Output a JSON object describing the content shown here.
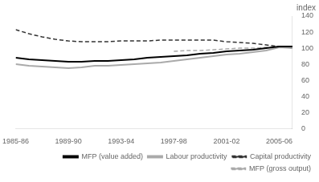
{
  "chart_data": {
    "type": "line",
    "y_label": "index",
    "x": [
      1985,
      1986,
      1987,
      1988,
      1989,
      1990,
      1991,
      1992,
      1993,
      1994,
      1995,
      1996,
      1997,
      1998,
      1999,
      2000,
      2001,
      2002,
      2003,
      2004,
      2005,
      2006
    ],
    "series": [
      {
        "name": "MFP (value added)",
        "color": "#000000",
        "line_style": "solid",
        "values": [
          88,
          86,
          85,
          84,
          83,
          83,
          84,
          84,
          85,
          86,
          88,
          89,
          90,
          91,
          93,
          94,
          96,
          97,
          98,
          100,
          102,
          102
        ]
      },
      {
        "name": "Labour productivity",
        "color": "#aaaaaa",
        "line_style": "solid",
        "values": [
          80,
          78,
          77,
          76,
          75,
          76,
          78,
          78,
          79,
          80,
          81,
          82,
          84,
          86,
          88,
          90,
          92,
          93,
          95,
          97,
          101,
          100
        ]
      },
      {
        "name": "Capital productivity",
        "color": "#333333",
        "line_style": "dashed",
        "values": [
          123,
          118,
          114,
          111,
          109,
          108,
          108,
          108,
          109,
          109,
          109,
          110,
          110,
          110,
          110,
          110,
          108,
          107,
          106,
          104,
          102,
          100
        ]
      },
      {
        "name": "MFP (gross output)",
        "color": "#aaaaaa",
        "line_style": "dashed",
        "values": [
          null,
          null,
          null,
          null,
          null,
          null,
          null,
          null,
          null,
          null,
          null,
          null,
          96,
          97,
          97,
          98,
          99,
          100,
          100,
          101,
          102,
          100
        ]
      }
    ],
    "xlim": [
      1985,
      2006
    ],
    "xticks": [
      {
        "value": 1985,
        "label": "1985-86"
      },
      {
        "value": 1989,
        "label": "1989-90"
      },
      {
        "value": 1993,
        "label": "1993-94"
      },
      {
        "value": 1997,
        "label": "1997-98"
      },
      {
        "value": 2001,
        "label": "2001-02"
      },
      {
        "value": 2005,
        "label": "2005-06"
      }
    ],
    "ylim": [
      0,
      140
    ],
    "yticks": [
      0,
      20,
      40,
      60,
      80,
      100,
      120,
      140
    ],
    "grid": false,
    "legend": "lower right"
  }
}
